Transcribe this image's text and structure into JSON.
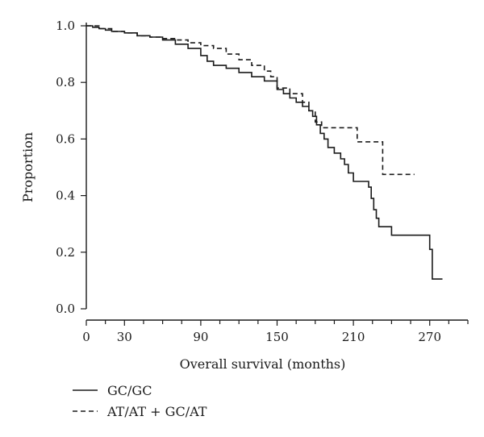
{
  "chart_data": {
    "type": "line",
    "title": "",
    "xlabel": "Overall survival (months)",
    "ylabel": "Proportion",
    "xlim": [
      0,
      300
    ],
    "ylim": [
      0,
      1.0
    ],
    "x_ticks": [
      0,
      30,
      90,
      150,
      210,
      270
    ],
    "y_ticks": [
      0.0,
      0.2,
      0.4,
      0.6,
      0.8,
      1.0
    ],
    "x_tick_labels": [
      "0",
      "30",
      "90",
      "150",
      "210",
      "270"
    ],
    "y_tick_labels": [
      "0.0",
      "0.2",
      "0.4",
      "0.6",
      "0.8",
      "1.0"
    ],
    "grid": false,
    "legend_position": "bottom-left",
    "series": [
      {
        "name": "GC/GC",
        "line_style": "solid",
        "color": "#1a1a1a",
        "x": [
          0,
          5,
          10,
          15,
          20,
          30,
          40,
          50,
          60,
          70,
          80,
          90,
          95,
          100,
          110,
          120,
          130,
          140,
          150,
          155,
          160,
          165,
          170,
          175,
          178,
          181,
          184,
          187,
          190,
          195,
          200,
          203,
          206,
          210,
          220,
          222,
          224,
          226,
          228,
          230,
          240,
          250,
          260,
          270,
          272,
          280
        ],
        "y": [
          1.0,
          0.995,
          0.99,
          0.985,
          0.98,
          0.975,
          0.965,
          0.96,
          0.95,
          0.935,
          0.92,
          0.895,
          0.875,
          0.86,
          0.85,
          0.835,
          0.82,
          0.805,
          0.775,
          0.76,
          0.745,
          0.73,
          0.715,
          0.7,
          0.68,
          0.65,
          0.62,
          0.6,
          0.57,
          0.55,
          0.53,
          0.51,
          0.48,
          0.45,
          0.45,
          0.43,
          0.39,
          0.35,
          0.32,
          0.29,
          0.26,
          0.26,
          0.26,
          0.21,
          0.105,
          0.105
        ]
      },
      {
        "name": "AT/AT + GC/AT",
        "line_style": "dashed",
        "color": "#1a1a1a",
        "x": [
          0,
          10,
          20,
          30,
          40,
          50,
          60,
          70,
          80,
          90,
          100,
          110,
          120,
          130,
          140,
          145,
          150,
          160,
          170,
          175,
          180,
          185,
          213,
          233,
          258
        ],
        "y": [
          1.0,
          0.99,
          0.98,
          0.975,
          0.965,
          0.96,
          0.955,
          0.95,
          0.94,
          0.93,
          0.92,
          0.9,
          0.88,
          0.86,
          0.84,
          0.82,
          0.78,
          0.76,
          0.73,
          0.7,
          0.66,
          0.64,
          0.59,
          0.475,
          0.475
        ]
      }
    ]
  }
}
